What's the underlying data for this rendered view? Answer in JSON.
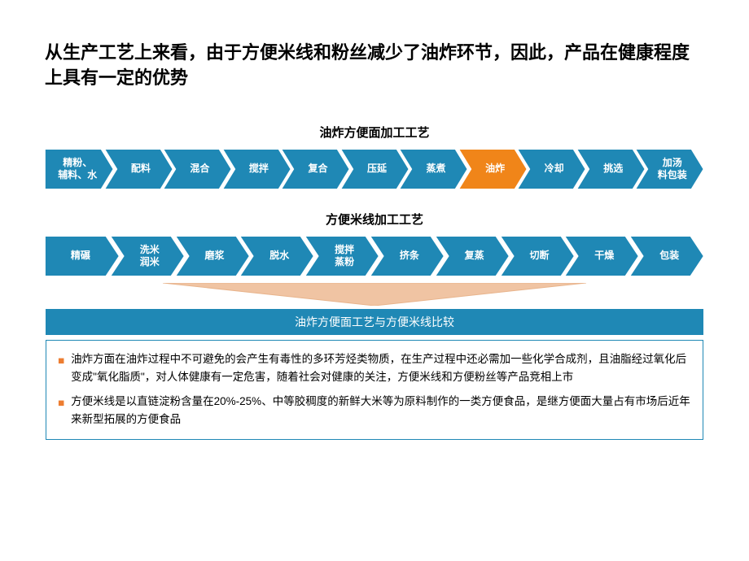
{
  "title": "从生产工艺上来看，由于方便米线和粉丝减少了油炸环节，因此，产品在健康程度上具有一定的优势",
  "colors": {
    "primary": "#1f88b5",
    "highlight": "#f08519",
    "stroke": "#ffffff",
    "arrow_fill": "#f0c4a3",
    "arrow_edge": "#e8b48c",
    "bullet": "#ed7d31"
  },
  "process1": {
    "label": "油炸方便面加工工艺",
    "steps": [
      {
        "text": "精粉、\n辅料、水",
        "color": "#1f88b5"
      },
      {
        "text": "配料",
        "color": "#1f88b5"
      },
      {
        "text": "混合",
        "color": "#1f88b5"
      },
      {
        "text": "搅拌",
        "color": "#1f88b5"
      },
      {
        "text": "复合",
        "color": "#1f88b5"
      },
      {
        "text": "压延",
        "color": "#1f88b5"
      },
      {
        "text": "蒸煮",
        "color": "#1f88b5"
      },
      {
        "text": "油炸",
        "color": "#f08519"
      },
      {
        "text": "冷却",
        "color": "#1f88b5"
      },
      {
        "text": "挑选",
        "color": "#1f88b5"
      },
      {
        "text": "加汤\n料包装",
        "color": "#1f88b5"
      }
    ]
  },
  "process2": {
    "label": "方便米线加工工艺",
    "steps": [
      {
        "text": "精碾",
        "color": "#1f88b5"
      },
      {
        "text": "洗米\n润米",
        "color": "#1f88b5"
      },
      {
        "text": "磨浆",
        "color": "#1f88b5"
      },
      {
        "text": "脱水",
        "color": "#1f88b5"
      },
      {
        "text": "搅拌\n蒸粉",
        "color": "#1f88b5"
      },
      {
        "text": "挤条",
        "color": "#1f88b5"
      },
      {
        "text": "复蒸",
        "color": "#1f88b5"
      },
      {
        "text": "切断",
        "color": "#1f88b5"
      },
      {
        "text": "干燥",
        "color": "#1f88b5"
      },
      {
        "text": "包装",
        "color": "#1f88b5"
      }
    ]
  },
  "comparison": {
    "header": "油炸方便面工艺与方便米线比较",
    "bullets": [
      "油炸方面在油炸过程中不可避免的会产生有毒性的多环芳烃类物质，在生产过程中还必需加一些化学合成剂，且油脂经过氧化后变成\"氧化脂质\"，对人体健康有一定危害，随着社会对健康的关注，方便米线和方便粉丝等产品竞相上市",
      "方便米线是以直链淀粉含量在20%-25%、中等胶稠度的新鲜大米等为原料制作的一类方便食品，是继方便面大量占有市场后近年来新型拓展的方便食品"
    ]
  }
}
